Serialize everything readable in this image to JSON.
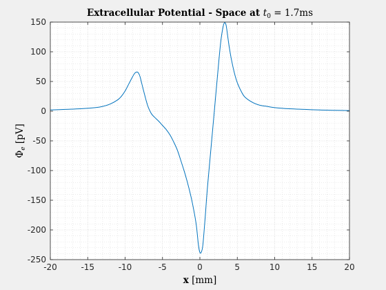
{
  "figure": {
    "title_prefix": "Extracellular Potential - Space at ",
    "title_var": "t",
    "title_sub": "0",
    "title_suffix": " = 1.7ms",
    "xlabel_bold": "x",
    "xlabel_unit": "[mm]",
    "ylabel_sym": "Φ",
    "ylabel_sub": "e",
    "ylabel_unit": "[pV]"
  },
  "chart_data": {
    "type": "line",
    "title": "Extracellular Potential - Space at t0 = 1.7ms",
    "xlabel": "x [mm]",
    "ylabel": "Φe [pV]",
    "xlim": [
      -20,
      20
    ],
    "ylim": [
      -250,
      150
    ],
    "xticks": [
      -20,
      -15,
      -10,
      -5,
      0,
      5,
      10,
      15,
      20
    ],
    "yticks": [
      -250,
      -200,
      -150,
      -100,
      -50,
      0,
      50,
      100,
      150
    ],
    "xtick_labels": [
      "-20",
      "-15",
      "-10",
      "-5",
      "0",
      "5",
      "10",
      "15",
      "20"
    ],
    "ytick_labels": [
      "-250",
      "-200",
      "-150",
      "-100",
      "-50",
      "0",
      "50",
      "100",
      "150"
    ],
    "grid": true,
    "minor_grid": true,
    "line_color": "#0072bd",
    "series": [
      {
        "x": [
          -20,
          -18,
          -16,
          -14,
          -13,
          -12,
          -11,
          -10.5,
          -10,
          -9.5,
          -9,
          -8.7,
          -8.4,
          -8.2,
          -8,
          -7.8,
          -7.5,
          -7,
          -6.5,
          -6,
          -5.5,
          -5,
          -4.5,
          -4,
          -3.5,
          -3,
          -2.5,
          -2,
          -1.5,
          -1,
          -0.5,
          -0.2,
          0,
          0.2,
          0.4,
          0.7,
          1,
          1.5,
          2,
          2.5,
          2.8,
          3.1,
          3.3,
          3.5,
          3.7,
          3.9,
          4.2,
          4.6,
          5,
          5.5,
          6,
          7,
          8,
          9,
          10,
          12,
          14,
          16,
          18,
          20
        ],
        "y": [
          2,
          3,
          4,
          6,
          8,
          12,
          19,
          25,
          34,
          46,
          58,
          64,
          66,
          64,
          58,
          48,
          33,
          10,
          -4,
          -11,
          -17,
          -24,
          -31,
          -40,
          -52,
          -66,
          -85,
          -105,
          -128,
          -155,
          -190,
          -225,
          -238,
          -237,
          -225,
          -180,
          -130,
          -60,
          10,
          80,
          118,
          142,
          149,
          145,
          128,
          110,
          88,
          65,
          48,
          34,
          24,
          15,
          10,
          8,
          6,
          4,
          3,
          2,
          1.5,
          1
        ]
      }
    ]
  }
}
